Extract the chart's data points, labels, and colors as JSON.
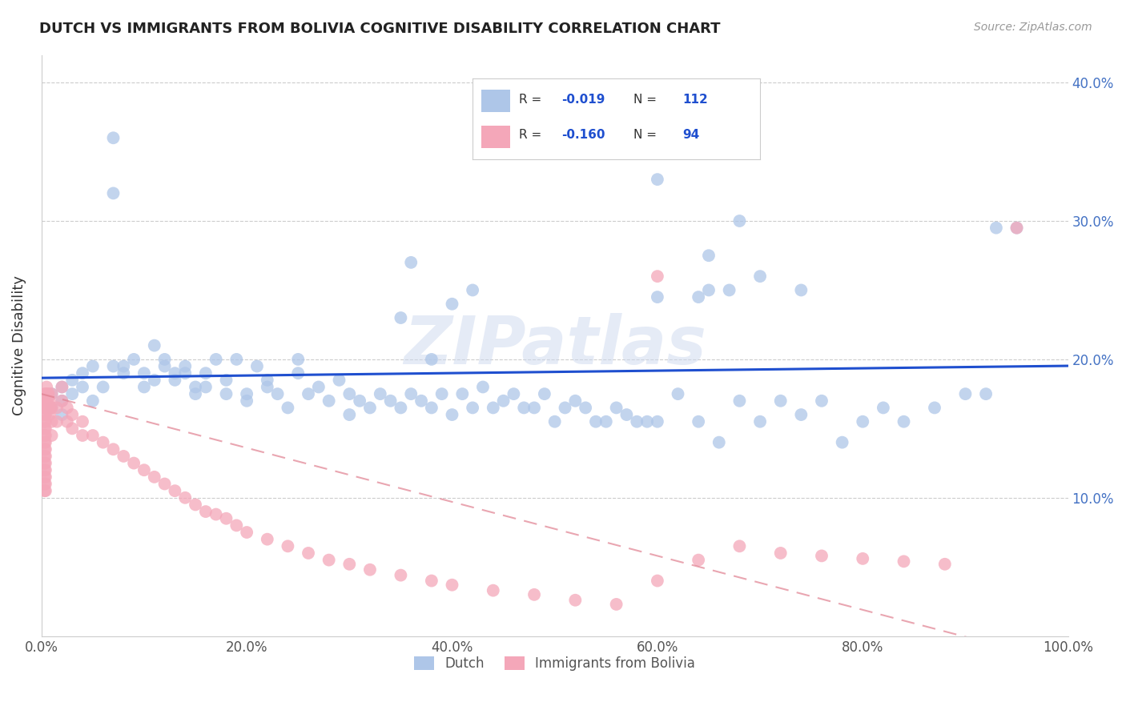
{
  "title": "DUTCH VS IMMIGRANTS FROM BOLIVIA COGNITIVE DISABILITY CORRELATION CHART",
  "source": "Source: ZipAtlas.com",
  "ylabel": "Cognitive Disability",
  "watermark": "ZIPatlas",
  "legend_entries": [
    {
      "label": "Dutch",
      "color": "#aec6e8",
      "R": "-0.019",
      "N": "112"
    },
    {
      "label": "Immigrants from Bolivia",
      "color": "#f4a7b9",
      "R": "-0.160",
      "N": "94"
    }
  ],
  "regression_dutch_color": "#1f4fcf",
  "regression_bolivia_color": "#e08090",
  "xlim": [
    0,
    1.0
  ],
  "ylim": [
    0,
    0.42
  ],
  "xtick_labels": [
    "0.0%",
    "20.0%",
    "40.0%",
    "60.0%",
    "80.0%",
    "100.0%"
  ],
  "xtick_vals": [
    0.0,
    0.2,
    0.4,
    0.6,
    0.8,
    1.0
  ],
  "ytick_labels": [
    "10.0%",
    "20.0%",
    "30.0%",
    "40.0%"
  ],
  "ytick_vals": [
    0.1,
    0.2,
    0.3,
    0.4
  ],
  "background_color": "#ffffff",
  "grid_color": "#cccccc",
  "tick_color": "#4472c4",
  "dutch_x": [
    0.01,
    0.01,
    0.02,
    0.02,
    0.02,
    0.03,
    0.03,
    0.04,
    0.04,
    0.05,
    0.05,
    0.06,
    0.07,
    0.07,
    0.07,
    0.08,
    0.08,
    0.09,
    0.1,
    0.1,
    0.11,
    0.11,
    0.12,
    0.12,
    0.13,
    0.13,
    0.14,
    0.14,
    0.15,
    0.15,
    0.16,
    0.16,
    0.17,
    0.18,
    0.18,
    0.19,
    0.2,
    0.2,
    0.21,
    0.22,
    0.22,
    0.23,
    0.24,
    0.25,
    0.25,
    0.26,
    0.27,
    0.28,
    0.29,
    0.3,
    0.3,
    0.31,
    0.32,
    0.33,
    0.34,
    0.35,
    0.36,
    0.37,
    0.38,
    0.39,
    0.4,
    0.41,
    0.42,
    0.43,
    0.44,
    0.45,
    0.46,
    0.47,
    0.48,
    0.49,
    0.5,
    0.51,
    0.52,
    0.53,
    0.54,
    0.55,
    0.56,
    0.57,
    0.58,
    0.59,
    0.6,
    0.62,
    0.64,
    0.66,
    0.68,
    0.7,
    0.72,
    0.74,
    0.76,
    0.78,
    0.8,
    0.82,
    0.84,
    0.87,
    0.9,
    0.92,
    0.6,
    0.64,
    0.65,
    0.4,
    0.42,
    0.6,
    0.65,
    0.67,
    0.68,
    0.35,
    0.38,
    0.36,
    0.7,
    0.74,
    0.93,
    0.95
  ],
  "dutch_y": [
    0.175,
    0.165,
    0.17,
    0.16,
    0.18,
    0.185,
    0.175,
    0.18,
    0.19,
    0.195,
    0.17,
    0.18,
    0.36,
    0.32,
    0.195,
    0.19,
    0.195,
    0.2,
    0.19,
    0.18,
    0.21,
    0.185,
    0.195,
    0.2,
    0.185,
    0.19,
    0.19,
    0.195,
    0.18,
    0.175,
    0.19,
    0.18,
    0.2,
    0.185,
    0.175,
    0.2,
    0.17,
    0.175,
    0.195,
    0.18,
    0.185,
    0.175,
    0.165,
    0.2,
    0.19,
    0.175,
    0.18,
    0.17,
    0.185,
    0.16,
    0.175,
    0.17,
    0.165,
    0.175,
    0.17,
    0.165,
    0.175,
    0.17,
    0.165,
    0.175,
    0.16,
    0.175,
    0.165,
    0.18,
    0.165,
    0.17,
    0.175,
    0.165,
    0.165,
    0.175,
    0.155,
    0.165,
    0.17,
    0.165,
    0.155,
    0.155,
    0.165,
    0.16,
    0.155,
    0.155,
    0.155,
    0.175,
    0.155,
    0.14,
    0.17,
    0.155,
    0.17,
    0.16,
    0.17,
    0.14,
    0.155,
    0.165,
    0.155,
    0.165,
    0.175,
    0.175,
    0.245,
    0.245,
    0.275,
    0.24,
    0.25,
    0.33,
    0.25,
    0.25,
    0.3,
    0.23,
    0.2,
    0.27,
    0.26,
    0.25,
    0.295,
    0.295
  ],
  "bolivia_x": [
    0.003,
    0.003,
    0.003,
    0.003,
    0.003,
    0.003,
    0.003,
    0.003,
    0.003,
    0.003,
    0.003,
    0.003,
    0.003,
    0.003,
    0.003,
    0.004,
    0.004,
    0.004,
    0.004,
    0.004,
    0.004,
    0.004,
    0.004,
    0.004,
    0.004,
    0.004,
    0.004,
    0.004,
    0.004,
    0.004,
    0.005,
    0.005,
    0.005,
    0.005,
    0.006,
    0.006,
    0.007,
    0.007,
    0.008,
    0.008,
    0.009,
    0.01,
    0.01,
    0.01,
    0.01,
    0.015,
    0.015,
    0.02,
    0.02,
    0.025,
    0.025,
    0.03,
    0.03,
    0.04,
    0.04,
    0.05,
    0.06,
    0.07,
    0.08,
    0.09,
    0.1,
    0.11,
    0.12,
    0.13,
    0.14,
    0.15,
    0.16,
    0.17,
    0.18,
    0.19,
    0.2,
    0.22,
    0.24,
    0.26,
    0.28,
    0.3,
    0.32,
    0.35,
    0.38,
    0.4,
    0.44,
    0.48,
    0.52,
    0.56,
    0.6,
    0.64,
    0.68,
    0.72,
    0.76,
    0.8,
    0.84,
    0.88,
    0.6,
    0.95
  ],
  "bolivia_y": [
    0.175,
    0.17,
    0.165,
    0.16,
    0.155,
    0.15,
    0.145,
    0.14,
    0.135,
    0.13,
    0.125,
    0.12,
    0.115,
    0.11,
    0.105,
    0.175,
    0.17,
    0.165,
    0.16,
    0.155,
    0.15,
    0.145,
    0.14,
    0.135,
    0.13,
    0.125,
    0.12,
    0.115,
    0.11,
    0.105,
    0.18,
    0.175,
    0.17,
    0.165,
    0.175,
    0.17,
    0.175,
    0.165,
    0.17,
    0.16,
    0.165,
    0.175,
    0.165,
    0.155,
    0.145,
    0.165,
    0.155,
    0.18,
    0.17,
    0.165,
    0.155,
    0.16,
    0.15,
    0.155,
    0.145,
    0.145,
    0.14,
    0.135,
    0.13,
    0.125,
    0.12,
    0.115,
    0.11,
    0.105,
    0.1,
    0.095,
    0.09,
    0.088,
    0.085,
    0.08,
    0.075,
    0.07,
    0.065,
    0.06,
    0.055,
    0.052,
    0.048,
    0.044,
    0.04,
    0.037,
    0.033,
    0.03,
    0.026,
    0.023,
    0.04,
    0.055,
    0.065,
    0.06,
    0.058,
    0.056,
    0.054,
    0.052,
    0.26,
    0.295
  ]
}
